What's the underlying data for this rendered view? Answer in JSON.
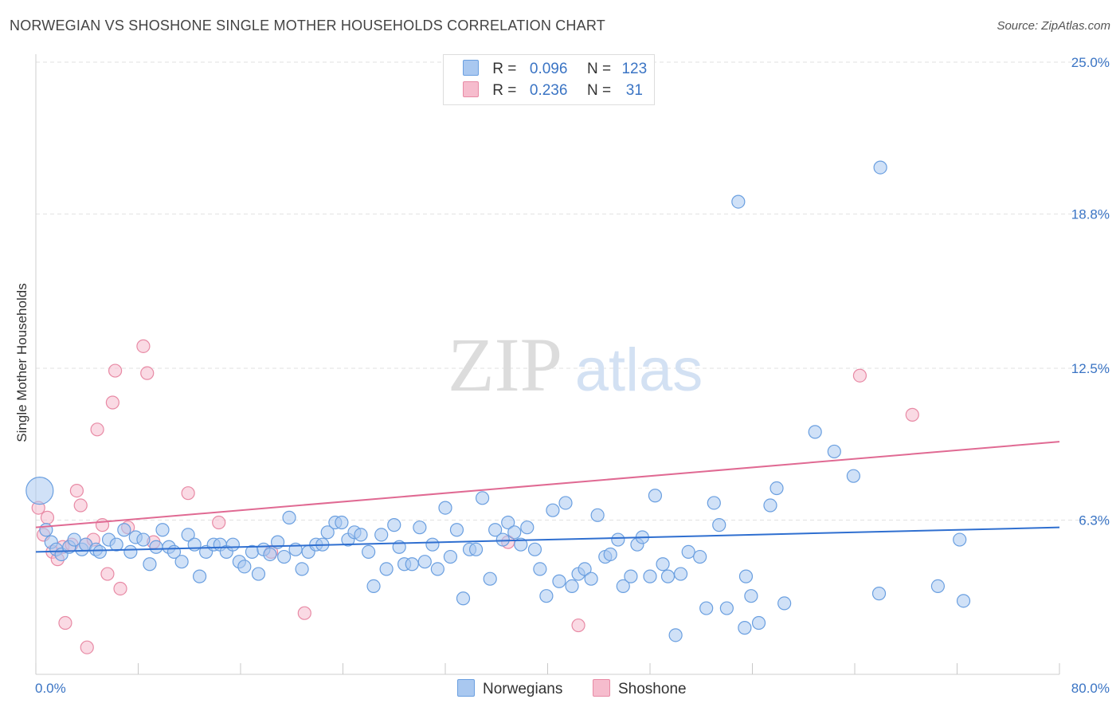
{
  "header": {
    "title": "NORWEGIAN VS SHOSHONE SINGLE MOTHER HOUSEHOLDS CORRELATION CHART",
    "source": "Source: ZipAtlas.com"
  },
  "watermark": {
    "zip": "ZIP",
    "atlas": "atlas"
  },
  "legend_box": {
    "rows": [
      {
        "r_label": "R =",
        "r_value": "0.096",
        "n_label": "N =",
        "n_value": "123"
      },
      {
        "r_label": "R =",
        "r_value": "0.236",
        "n_label": "N =",
        "n_value": "31"
      }
    ]
  },
  "bottom_legend": {
    "norwegians": "Norwegians",
    "shoshone": "Shoshone"
  },
  "colors": {
    "blue_fill": "#a9c8f0",
    "blue_stroke": "#6a9fe0",
    "blue_line": "#2f6fd0",
    "pink_fill": "#f6bccd",
    "pink_stroke": "#e88aa5",
    "pink_line": "#e06a93",
    "axis_label": "#3a74c4",
    "grid": "#e2e2e2"
  },
  "chart_data": {
    "type": "scatter",
    "title": "NORWEGIAN VS SHOSHONE SINGLE MOTHER HOUSEHOLDS CORRELATION CHART",
    "xlabel": "",
    "ylabel": "Single Mother Households",
    "xlim": [
      0,
      80
    ],
    "ylim": [
      0,
      25
    ],
    "x_tick_labels": [
      "0.0%",
      "80.0%"
    ],
    "y_ticks": [
      6.3,
      12.5,
      18.8,
      25.0
    ],
    "y_tick_labels": [
      "6.3%",
      "12.5%",
      "18.8%",
      "25.0%"
    ],
    "grid": "horizontal dashed",
    "series": [
      {
        "name": "Norwegians",
        "r": 0.096,
        "n": 123,
        "trend": {
          "x0": 0,
          "y0": 5.0,
          "x1": 80,
          "y1": 6.0
        },
        "points": [
          [
            0.3,
            7.5
          ],
          [
            0.8,
            5.9
          ],
          [
            1.2,
            5.4
          ],
          [
            1.6,
            5.1
          ],
          [
            2.0,
            4.9
          ],
          [
            2.6,
            5.2
          ],
          [
            3.0,
            5.5
          ],
          [
            3.6,
            5.1
          ],
          [
            3.9,
            5.3
          ],
          [
            4.7,
            5.1
          ],
          [
            5.0,
            5.0
          ],
          [
            5.7,
            5.5
          ],
          [
            6.3,
            5.3
          ],
          [
            6.9,
            5.9
          ],
          [
            7.4,
            5.0
          ],
          [
            7.8,
            5.6
          ],
          [
            8.4,
            5.5
          ],
          [
            8.9,
            4.5
          ],
          [
            9.4,
            5.2
          ],
          [
            9.9,
            5.9
          ],
          [
            10.4,
            5.2
          ],
          [
            10.8,
            5.0
          ],
          [
            11.4,
            4.6
          ],
          [
            11.9,
            5.7
          ],
          [
            12.4,
            5.3
          ],
          [
            12.8,
            4.0
          ],
          [
            13.3,
            5.0
          ],
          [
            13.9,
            5.3
          ],
          [
            14.4,
            5.3
          ],
          [
            14.9,
            5.0
          ],
          [
            15.4,
            5.3
          ],
          [
            15.9,
            4.6
          ],
          [
            16.3,
            4.4
          ],
          [
            16.9,
            5.0
          ],
          [
            17.4,
            4.1
          ],
          [
            17.8,
            5.1
          ],
          [
            18.3,
            4.9
          ],
          [
            18.9,
            5.4
          ],
          [
            19.4,
            4.8
          ],
          [
            19.8,
            6.4
          ],
          [
            20.3,
            5.1
          ],
          [
            20.8,
            4.3
          ],
          [
            21.3,
            5.0
          ],
          [
            21.9,
            5.3
          ],
          [
            22.4,
            5.3
          ],
          [
            22.8,
            5.8
          ],
          [
            23.4,
            6.2
          ],
          [
            23.9,
            6.2
          ],
          [
            24.4,
            5.5
          ],
          [
            24.9,
            5.8
          ],
          [
            25.4,
            5.7
          ],
          [
            26.0,
            5.0
          ],
          [
            26.4,
            3.6
          ],
          [
            27.0,
            5.7
          ],
          [
            27.4,
            4.3
          ],
          [
            28.0,
            6.1
          ],
          [
            28.4,
            5.2
          ],
          [
            28.8,
            4.5
          ],
          [
            29.4,
            4.5
          ],
          [
            30.0,
            6.0
          ],
          [
            30.4,
            4.6
          ],
          [
            31.0,
            5.3
          ],
          [
            31.4,
            4.3
          ],
          [
            32.0,
            6.8
          ],
          [
            32.4,
            4.8
          ],
          [
            32.9,
            5.9
          ],
          [
            33.4,
            3.1
          ],
          [
            33.9,
            5.1
          ],
          [
            34.4,
            5.1
          ],
          [
            34.9,
            7.2
          ],
          [
            35.5,
            3.9
          ],
          [
            35.9,
            5.9
          ],
          [
            36.5,
            5.5
          ],
          [
            36.9,
            6.2
          ],
          [
            37.4,
            5.8
          ],
          [
            37.9,
            5.3
          ],
          [
            38.4,
            6.0
          ],
          [
            39.0,
            5.1
          ],
          [
            39.4,
            4.3
          ],
          [
            39.9,
            3.2
          ],
          [
            40.4,
            6.7
          ],
          [
            40.9,
            3.8
          ],
          [
            41.4,
            7.0
          ],
          [
            41.9,
            3.6
          ],
          [
            42.4,
            4.1
          ],
          [
            42.9,
            4.3
          ],
          [
            43.4,
            3.9
          ],
          [
            43.9,
            6.5
          ],
          [
            44.5,
            4.8
          ],
          [
            44.9,
            4.9
          ],
          [
            45.5,
            5.5
          ],
          [
            45.9,
            3.6
          ],
          [
            46.5,
            4.0
          ],
          [
            47.0,
            5.3
          ],
          [
            47.4,
            5.6
          ],
          [
            48.0,
            4.0
          ],
          [
            48.4,
            7.3
          ],
          [
            49.0,
            4.5
          ],
          [
            49.4,
            4.0
          ],
          [
            50.0,
            1.6
          ],
          [
            50.4,
            4.1
          ],
          [
            51.0,
            5.0
          ],
          [
            51.9,
            4.8
          ],
          [
            52.4,
            2.7
          ],
          [
            53.0,
            7.0
          ],
          [
            53.4,
            6.1
          ],
          [
            54.0,
            2.7
          ],
          [
            54.9,
            19.3
          ],
          [
            55.5,
            4.0
          ],
          [
            55.9,
            3.2
          ],
          [
            55.4,
            1.9
          ],
          [
            56.5,
            2.1
          ],
          [
            57.4,
            6.9
          ],
          [
            57.9,
            7.6
          ],
          [
            58.5,
            2.9
          ],
          [
            60.9,
            9.9
          ],
          [
            62.4,
            9.1
          ],
          [
            63.9,
            8.1
          ],
          [
            65.9,
            3.3
          ],
          [
            66.0,
            20.7
          ],
          [
            70.5,
            3.6
          ],
          [
            72.5,
            3.0
          ],
          [
            72.2,
            5.5
          ]
        ]
      },
      {
        "name": "Shoshone",
        "r": 0.236,
        "n": 31,
        "trend": {
          "x0": 0,
          "y0": 6.0,
          "x1": 80,
          "y1": 9.5
        },
        "points": [
          [
            0.2,
            6.8
          ],
          [
            0.6,
            5.7
          ],
          [
            0.9,
            6.4
          ],
          [
            1.3,
            5.0
          ],
          [
            1.7,
            4.7
          ],
          [
            2.1,
            5.2
          ],
          [
            2.3,
            2.1
          ],
          [
            2.8,
            5.3
          ],
          [
            3.2,
            7.5
          ],
          [
            3.5,
            6.9
          ],
          [
            3.9,
            5.3
          ],
          [
            4.0,
            1.1
          ],
          [
            4.5,
            5.5
          ],
          [
            4.8,
            10.0
          ],
          [
            5.2,
            6.1
          ],
          [
            5.6,
            4.1
          ],
          [
            6.0,
            11.1
          ],
          [
            6.2,
            12.4
          ],
          [
            6.6,
            3.5
          ],
          [
            7.2,
            6.0
          ],
          [
            8.4,
            13.4
          ],
          [
            8.7,
            12.3
          ],
          [
            9.2,
            5.4
          ],
          [
            11.9,
            7.4
          ],
          [
            14.3,
            6.2
          ],
          [
            18.4,
            5.0
          ],
          [
            21.0,
            2.5
          ],
          [
            36.9,
            5.4
          ],
          [
            42.4,
            2.0
          ],
          [
            64.4,
            12.2
          ],
          [
            68.5,
            10.6
          ]
        ]
      }
    ]
  }
}
